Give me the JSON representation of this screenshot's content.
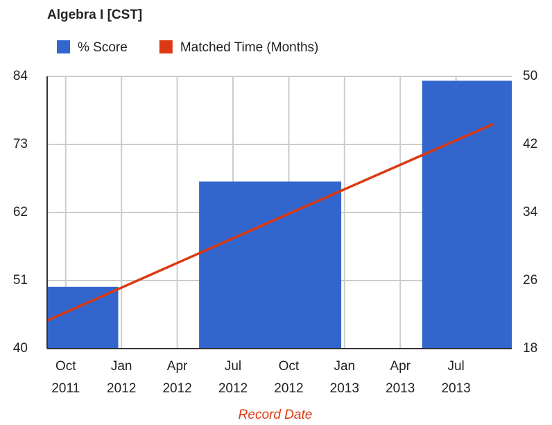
{
  "chart_data": {
    "type": "bar-line",
    "title": "Algebra I [CST]",
    "x_label": "Record Date",
    "xlim": [
      "2011-09",
      "2013-10"
    ],
    "xticks": [
      {
        "value": "2011-10",
        "label": "Oct 2011"
      },
      {
        "value": "2012-01",
        "label": "Jan 2012"
      },
      {
        "value": "2012-04",
        "label": "Apr 2012"
      },
      {
        "value": "2012-07",
        "label": "Jul 2012"
      },
      {
        "value": "2012-10",
        "label": "Oct 2012"
      },
      {
        "value": "2013-01",
        "label": "Jan 2013"
      },
      {
        "value": "2013-04",
        "label": "Apr 2013"
      },
      {
        "value": "2013-07",
        "label": "Jul 2013"
      }
    ],
    "x": [
      "2011-09",
      "2012-09",
      "2013-09"
    ],
    "ylim": [
      40,
      84
    ],
    "yticks": [
      40,
      51,
      62,
      73,
      84
    ],
    "y2lim": [
      18,
      50
    ],
    "y2ticks": [
      18,
      26,
      34,
      42,
      50
    ],
    "grid": true,
    "legend": "top",
    "series": [
      {
        "name": "% Score",
        "color": "#3366cc",
        "kind": "bar",
        "values": [
          50,
          67,
          83.3
        ]
      },
      {
        "name": "Matched Time (Months)",
        "color": "#dc3912",
        "kind": "line",
        "axis": "y2",
        "values": [
          21.3,
          32.9,
          44.4
        ]
      }
    ]
  }
}
